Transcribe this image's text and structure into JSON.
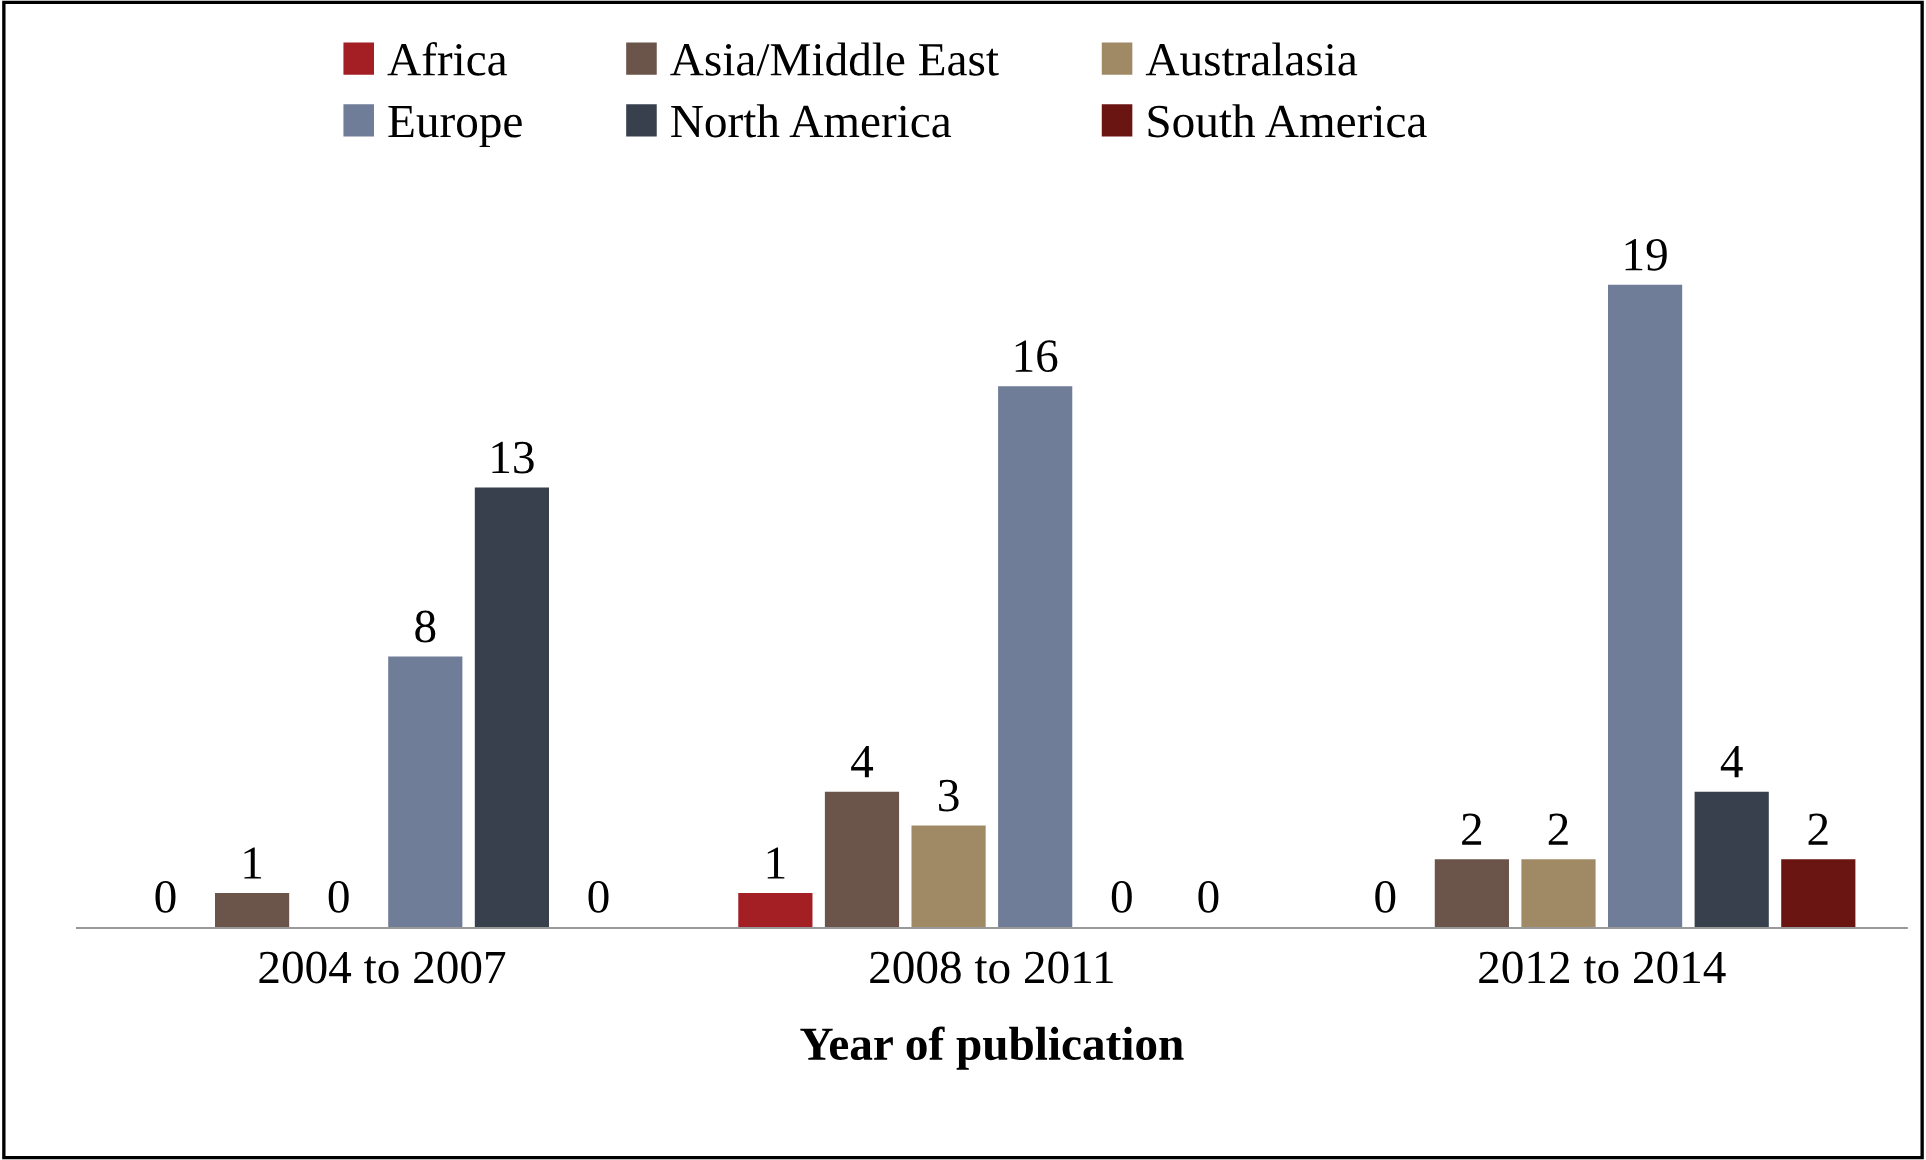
{
  "chart_data": {
    "type": "bar",
    "xlabel": "Year of publication",
    "categories": [
      "2004 to 2007",
      "2008 to 2011",
      "2012 to 2014"
    ],
    "series": [
      {
        "name": "Africa",
        "color": "#a31f24",
        "values": [
          0,
          1,
          0
        ]
      },
      {
        "name": "Asia/Middle East",
        "color": "#6b5449",
        "values": [
          1,
          4,
          2
        ]
      },
      {
        "name": "Australasia",
        "color": "#a08a66",
        "values": [
          0,
          3,
          2
        ]
      },
      {
        "name": "Europe",
        "color": "#707d98",
        "values": [
          8,
          16,
          19
        ]
      },
      {
        "name": "North America",
        "color": "#37404c",
        "values": [
          13,
          0,
          4
        ]
      },
      {
        "name": "South America",
        "color": "#6b1512",
        "values": [
          0,
          0,
          2
        ]
      }
    ],
    "data_labels": true,
    "legend": "top",
    "grid": false
  }
}
